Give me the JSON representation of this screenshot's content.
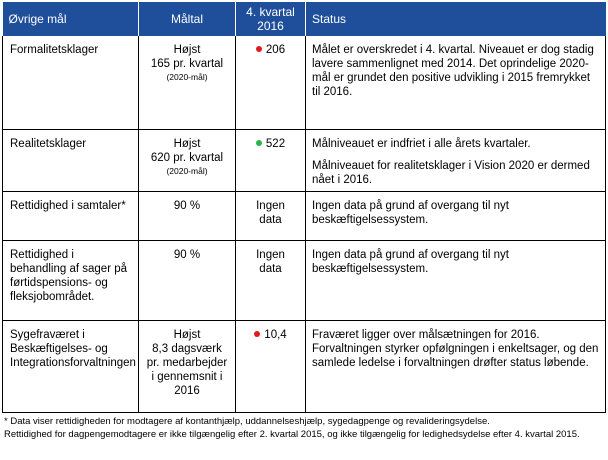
{
  "colors": {
    "header_bg": "#1f4e9b",
    "dot_red": "#e31a1c",
    "dot_green": "#2bb44a"
  },
  "headers": {
    "goal": "Øvrige mål",
    "target": "Måltal",
    "q4_line1": "4. kvartal",
    "q4_line2": "2016",
    "status": "Status"
  },
  "rows": [
    {
      "goal": "Formalitetsklager",
      "target_lines": [
        "Højst",
        "165 pr. kvartal"
      ],
      "target_note": "(2020-mål)",
      "q4": "206",
      "dot": "red",
      "status": [
        "Målet er overskredet i 4. kvartal. Niveauet er dog stadig lavere sammenlignet med 2014. Det oprindelige 2020-mål er grundet den positive udvikling i 2015 fremrykket til 2016."
      ]
    },
    {
      "goal": "Realitetsklager",
      "target_lines": [
        "Højst",
        "620 pr. kvartal"
      ],
      "target_note": "(2020-mål)",
      "q4": "522",
      "dot": "green",
      "status": [
        "Målniveauet er indfriet i alle årets kvartaler.",
        "Målniveauet for realitetsklager i Vision 2020 er dermed nået i 2016."
      ]
    },
    {
      "goal": "Rettidighed i samtaler*",
      "target_lines": [
        "90 %"
      ],
      "target_note": "",
      "q4": "Ingen data",
      "dot": "",
      "status": [
        "Ingen data på grund af overgang til nyt beskæftigelsessystem."
      ]
    },
    {
      "goal": "Rettidighed i behandling af sager på førtidspensions- og fleksjobområdet.",
      "target_lines": [
        "90 %"
      ],
      "target_note": "",
      "q4": "Ingen data",
      "dot": "",
      "status": [
        "Ingen data på grund af overgang til nyt beskæftigelsessystem."
      ]
    },
    {
      "goal": "Sygefraværet i Beskæftigelses- og Integrationsforvaltningen",
      "target_lines": [
        "Højst",
        "8,3 dagsværk",
        "pr. medarbejder",
        "i gennemsnit i",
        "2016"
      ],
      "target_note": "",
      "q4": "10,4",
      "dot": "red",
      "status": [
        "Fraværet ligger over målsætningen for 2016. Forvaltningen styrker opfølgningen i enkeltsager, og den samlede ledelse i forvaltningen drøfter status løbende."
      ]
    }
  ],
  "footnotes": [
    "* Data viser rettidigheden for modtagere af kontanthjælp, uddannelseshjælp, sygedagpenge og revalideringsydelse.",
    "Rettidighed for dagpengemodtagere er ikke tilgængelig efter 2. kvartal 2015, og ikke tilgængelig for ledighedsydelse efter 4. kvartal 2015."
  ]
}
